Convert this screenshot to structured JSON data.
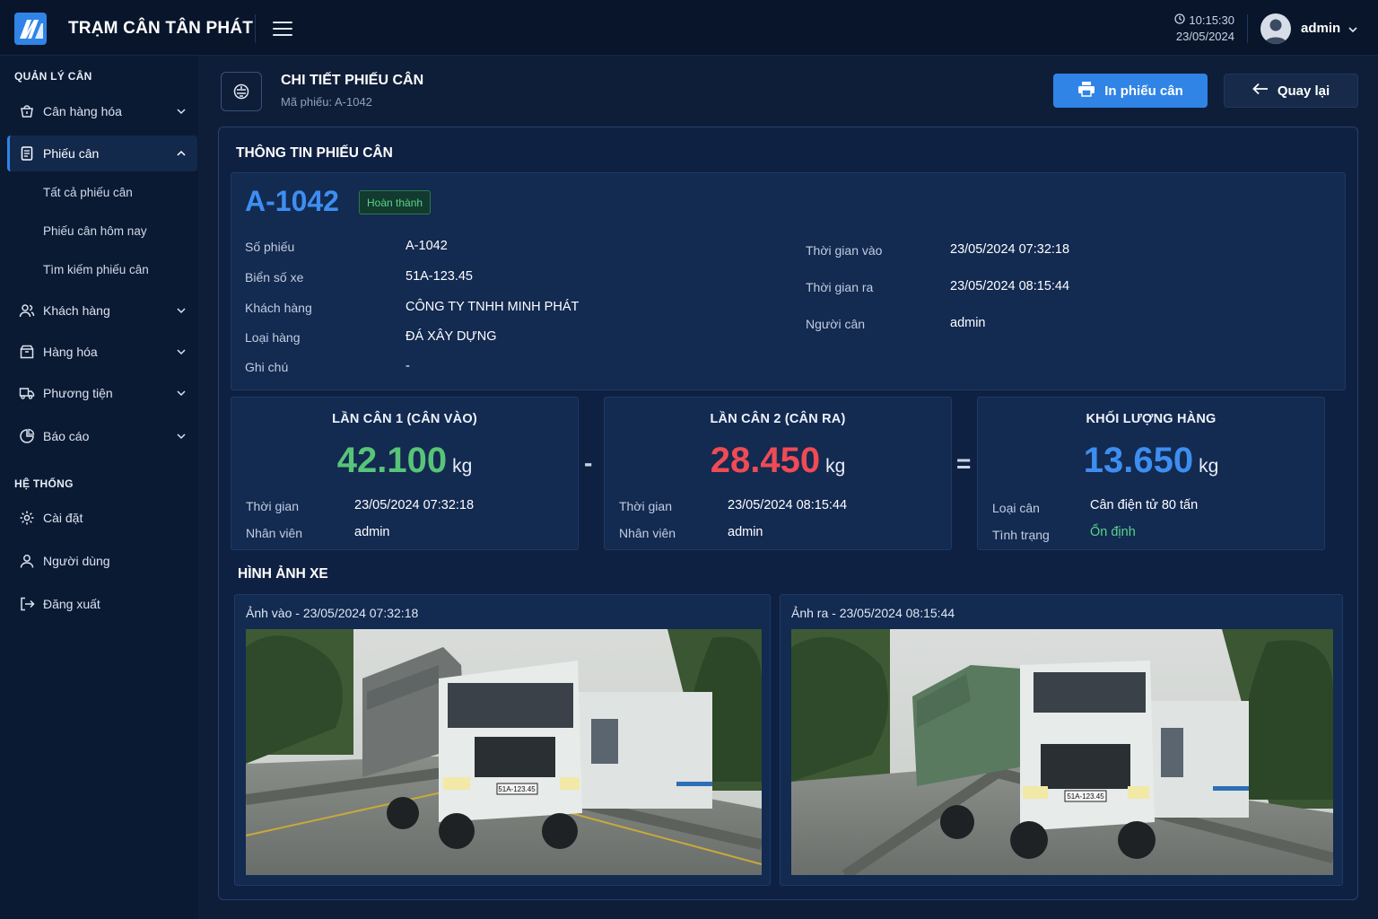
{
  "app": {
    "title": "TRẠM CÂN TÂN PHÁT"
  },
  "clock": {
    "time": "10:15:30",
    "date": "23/05/2024"
  },
  "user": {
    "name": "admin"
  },
  "sidebar": {
    "section1": "QUẢN LÝ CÂN",
    "section2": "HỆ THỐNG",
    "items": [
      {
        "label": "Cân hàng hóa"
      },
      {
        "label": "Phiếu cân"
      },
      {
        "label": "Khách hàng"
      },
      {
        "label": "Hàng hóa"
      },
      {
        "label": "Phương tiện"
      },
      {
        "label": "Báo cáo"
      },
      {
        "label": "Cài đặt"
      },
      {
        "label": "Người dùng"
      },
      {
        "label": "Đăng xuất"
      }
    ],
    "subitems": [
      {
        "label": "Tất cả phiếu cân"
      },
      {
        "label": "Phiếu cân hôm nay"
      },
      {
        "label": "Tìm kiếm phiếu cân"
      }
    ]
  },
  "header": {
    "title": "CHI TIẾT PHIẾU CÂN",
    "subtitle": "Mã phiếu: A-1042",
    "print_label": "In phiếu cân",
    "back_label": "Quay lại"
  },
  "info": {
    "section_title": "THÔNG TIN PHIẾU CÂN",
    "ticket_no": "A-1042",
    "status": "Hoàn thành",
    "status_color": "#58d488",
    "left": [
      {
        "label": "Số phiếu",
        "value": "A-1042"
      },
      {
        "label": "Biển số xe",
        "value": "51A-123.45"
      },
      {
        "label": "Khách hàng",
        "value": "CÔNG TY TNHH MINH PHÁT"
      },
      {
        "label": "Loại hàng",
        "value": "ĐÁ XÂY DỰNG"
      },
      {
        "label": "Ghi chú",
        "value": "-"
      }
    ],
    "right": [
      {
        "label": "Thời gian vào",
        "value": "23/05/2024 07:32:18"
      },
      {
        "label": "Thời gian ra",
        "value": "23/05/2024 08:15:44"
      },
      {
        "label": "Người cân",
        "value": "admin"
      }
    ]
  },
  "weights": {
    "minus": "-",
    "equals": "=",
    "first": {
      "title": "LẦN CÂN 1 (CÂN VÀO)",
      "value": "42.100",
      "unit": "kg",
      "color": "#58c478",
      "rows": [
        {
          "label": "Thời gian",
          "value": "23/05/2024 07:32:18"
        },
        {
          "label": "Nhân viên",
          "value": "admin"
        }
      ]
    },
    "second": {
      "title": "LẦN CÂN 2 (CÂN RA)",
      "value": "28.450",
      "unit": "kg",
      "color": "#ef4b55",
      "rows": [
        {
          "label": "Thời gian",
          "value": "23/05/2024 08:15:44"
        },
        {
          "label": "Nhân viên",
          "value": "admin"
        }
      ]
    },
    "net": {
      "title": "KHỐI LƯỢNG HÀNG",
      "value": "13.650",
      "unit": "kg",
      "color": "#3d8ef0",
      "rows": [
        {
          "label": "Loại cân",
          "value": "Cân điện tử 80 tấn"
        },
        {
          "label": "Tình trạng",
          "value": "Ổn định"
        }
      ],
      "status_color": "#58d488"
    }
  },
  "images": {
    "section_title": "HÌNH ẢNH XE",
    "in_caption": "Ảnh vào - 23/05/2024 07:32:18",
    "out_caption": "Ảnh ra - 23/05/2024 08:15:44",
    "plate": "51A-123.45"
  }
}
